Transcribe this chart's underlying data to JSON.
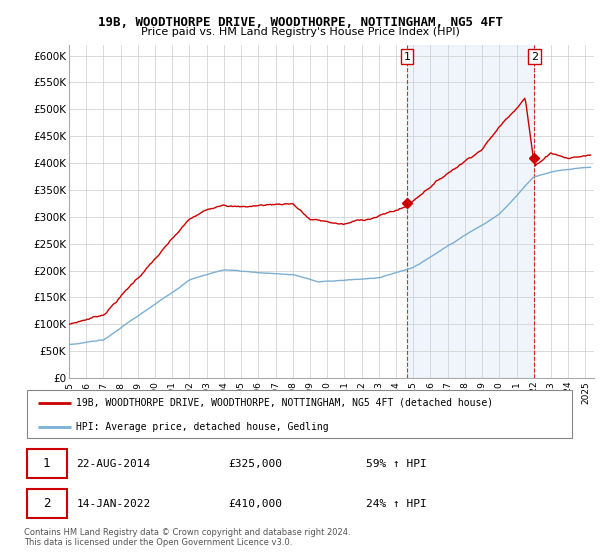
{
  "title": "19B, WOODTHORPE DRIVE, WOODTHORPE, NOTTINGHAM, NG5 4FT",
  "subtitle": "Price paid vs. HM Land Registry's House Price Index (HPI)",
  "legend_line1": "19B, WOODTHORPE DRIVE, WOODTHORPE, NOTTINGHAM, NG5 4FT (detached house)",
  "legend_line2": "HPI: Average price, detached house, Gedling",
  "annotation1_date": "22-AUG-2014",
  "annotation1_price": "£325,000",
  "annotation1_hpi": "59% ↑ HPI",
  "annotation2_date": "14-JAN-2022",
  "annotation2_price": "£410,000",
  "annotation2_hpi": "24% ↑ HPI",
  "footnote": "Contains HM Land Registry data © Crown copyright and database right 2024.\nThis data is licensed under the Open Government Licence v3.0.",
  "vline1_x": 2014.64,
  "vline2_x": 2022.04,
  "point1_x": 2014.64,
  "point1_y": 325000,
  "point2_x": 2022.04,
  "point2_y": 410000,
  "ylim": [
    0,
    620000
  ],
  "xlim": [
    1995,
    2025.5
  ],
  "red_color": "#cc0000",
  "blue_color": "#7bafd4",
  "fill_color": "#ddeeff",
  "background_color": "#ffffff",
  "grid_color": "#cccccc"
}
